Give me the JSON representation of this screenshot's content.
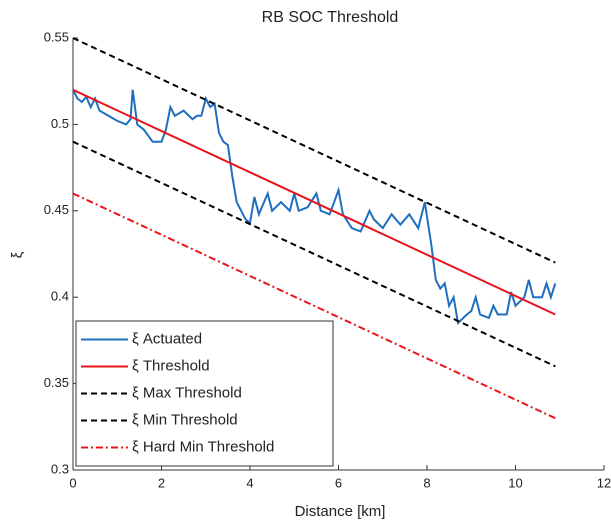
{
  "chart_data": {
    "type": "line",
    "title": "RB SOC Threshold",
    "x_label": "Distance [km]",
    "y_label": "ξ",
    "xlim": [
      0,
      12
    ],
    "xticks": [
      0,
      2,
      4,
      6,
      8,
      10,
      12
    ],
    "ylim": [
      0.3,
      0.55
    ],
    "yticks": [
      0.3,
      0.35,
      0.4,
      0.45,
      0.5,
      0.55
    ],
    "legend": "lower left",
    "series": [
      {
        "name": "ξ Actuated",
        "color": "#1f6fbf",
        "linestyle": "solid",
        "x": [
          0,
          0.1,
          0.2,
          0.3,
          0.4,
          0.5,
          0.6,
          0.8,
          1.0,
          1.2,
          1.3,
          1.35,
          1.45,
          1.6,
          1.8,
          2.0,
          2.1,
          2.2,
          2.3,
          2.5,
          2.7,
          2.8,
          2.9,
          3.0,
          3.1,
          3.2,
          3.3,
          3.4,
          3.5,
          3.6,
          3.7,
          3.8,
          3.9,
          4.0,
          4.1,
          4.2,
          4.4,
          4.5,
          4.7,
          4.9,
          5.0,
          5.1,
          5.3,
          5.5,
          5.6,
          5.8,
          5.9,
          6.0,
          6.1,
          6.3,
          6.5,
          6.7,
          6.8,
          7.0,
          7.2,
          7.4,
          7.6,
          7.8,
          7.95,
          8.1,
          8.2,
          8.3,
          8.4,
          8.5,
          8.6,
          8.7,
          8.9,
          9.0,
          9.1,
          9.2,
          9.4,
          9.5,
          9.6,
          9.8,
          9.9,
          10.0,
          10.2,
          10.3,
          10.4,
          10.6,
          10.7,
          10.8,
          10.9
        ],
        "values": [
          0.52,
          0.515,
          0.513,
          0.516,
          0.51,
          0.515,
          0.508,
          0.505,
          0.502,
          0.5,
          0.503,
          0.52,
          0.5,
          0.497,
          0.49,
          0.49,
          0.497,
          0.51,
          0.505,
          0.508,
          0.503,
          0.505,
          0.505,
          0.515,
          0.51,
          0.512,
          0.495,
          0.49,
          0.488,
          0.47,
          0.455,
          0.45,
          0.445,
          0.443,
          0.458,
          0.448,
          0.46,
          0.45,
          0.455,
          0.45,
          0.46,
          0.45,
          0.452,
          0.46,
          0.45,
          0.448,
          0.455,
          0.462,
          0.448,
          0.44,
          0.438,
          0.45,
          0.445,
          0.44,
          0.448,
          0.442,
          0.448,
          0.44,
          0.455,
          0.43,
          0.41,
          0.405,
          0.408,
          0.395,
          0.4,
          0.385,
          0.39,
          0.392,
          0.4,
          0.39,
          0.388,
          0.395,
          0.39,
          0.39,
          0.403,
          0.395,
          0.4,
          0.41,
          0.4,
          0.4,
          0.408,
          0.4,
          0.408
        ]
      },
      {
        "name": "ξ Threshold",
        "color": "#e8141a",
        "linestyle": "solid",
        "x": [
          0,
          10.9
        ],
        "values": [
          0.52,
          0.39
        ]
      },
      {
        "name": "ξ Max Threshold",
        "color": "#000000",
        "linestyle": "dashed",
        "x": [
          0,
          10.9
        ],
        "values": [
          0.55,
          0.42
        ]
      },
      {
        "name": "ξ Min Threshold",
        "color": "#000000",
        "linestyle": "dashed",
        "x": [
          0,
          10.9
        ],
        "values": [
          0.49,
          0.36
        ]
      },
      {
        "name": "ξ Hard Min Threshold",
        "color": "#e8141a",
        "linestyle": "dashdot",
        "x": [
          0,
          10.9
        ],
        "values": [
          0.46,
          0.33
        ]
      }
    ]
  }
}
